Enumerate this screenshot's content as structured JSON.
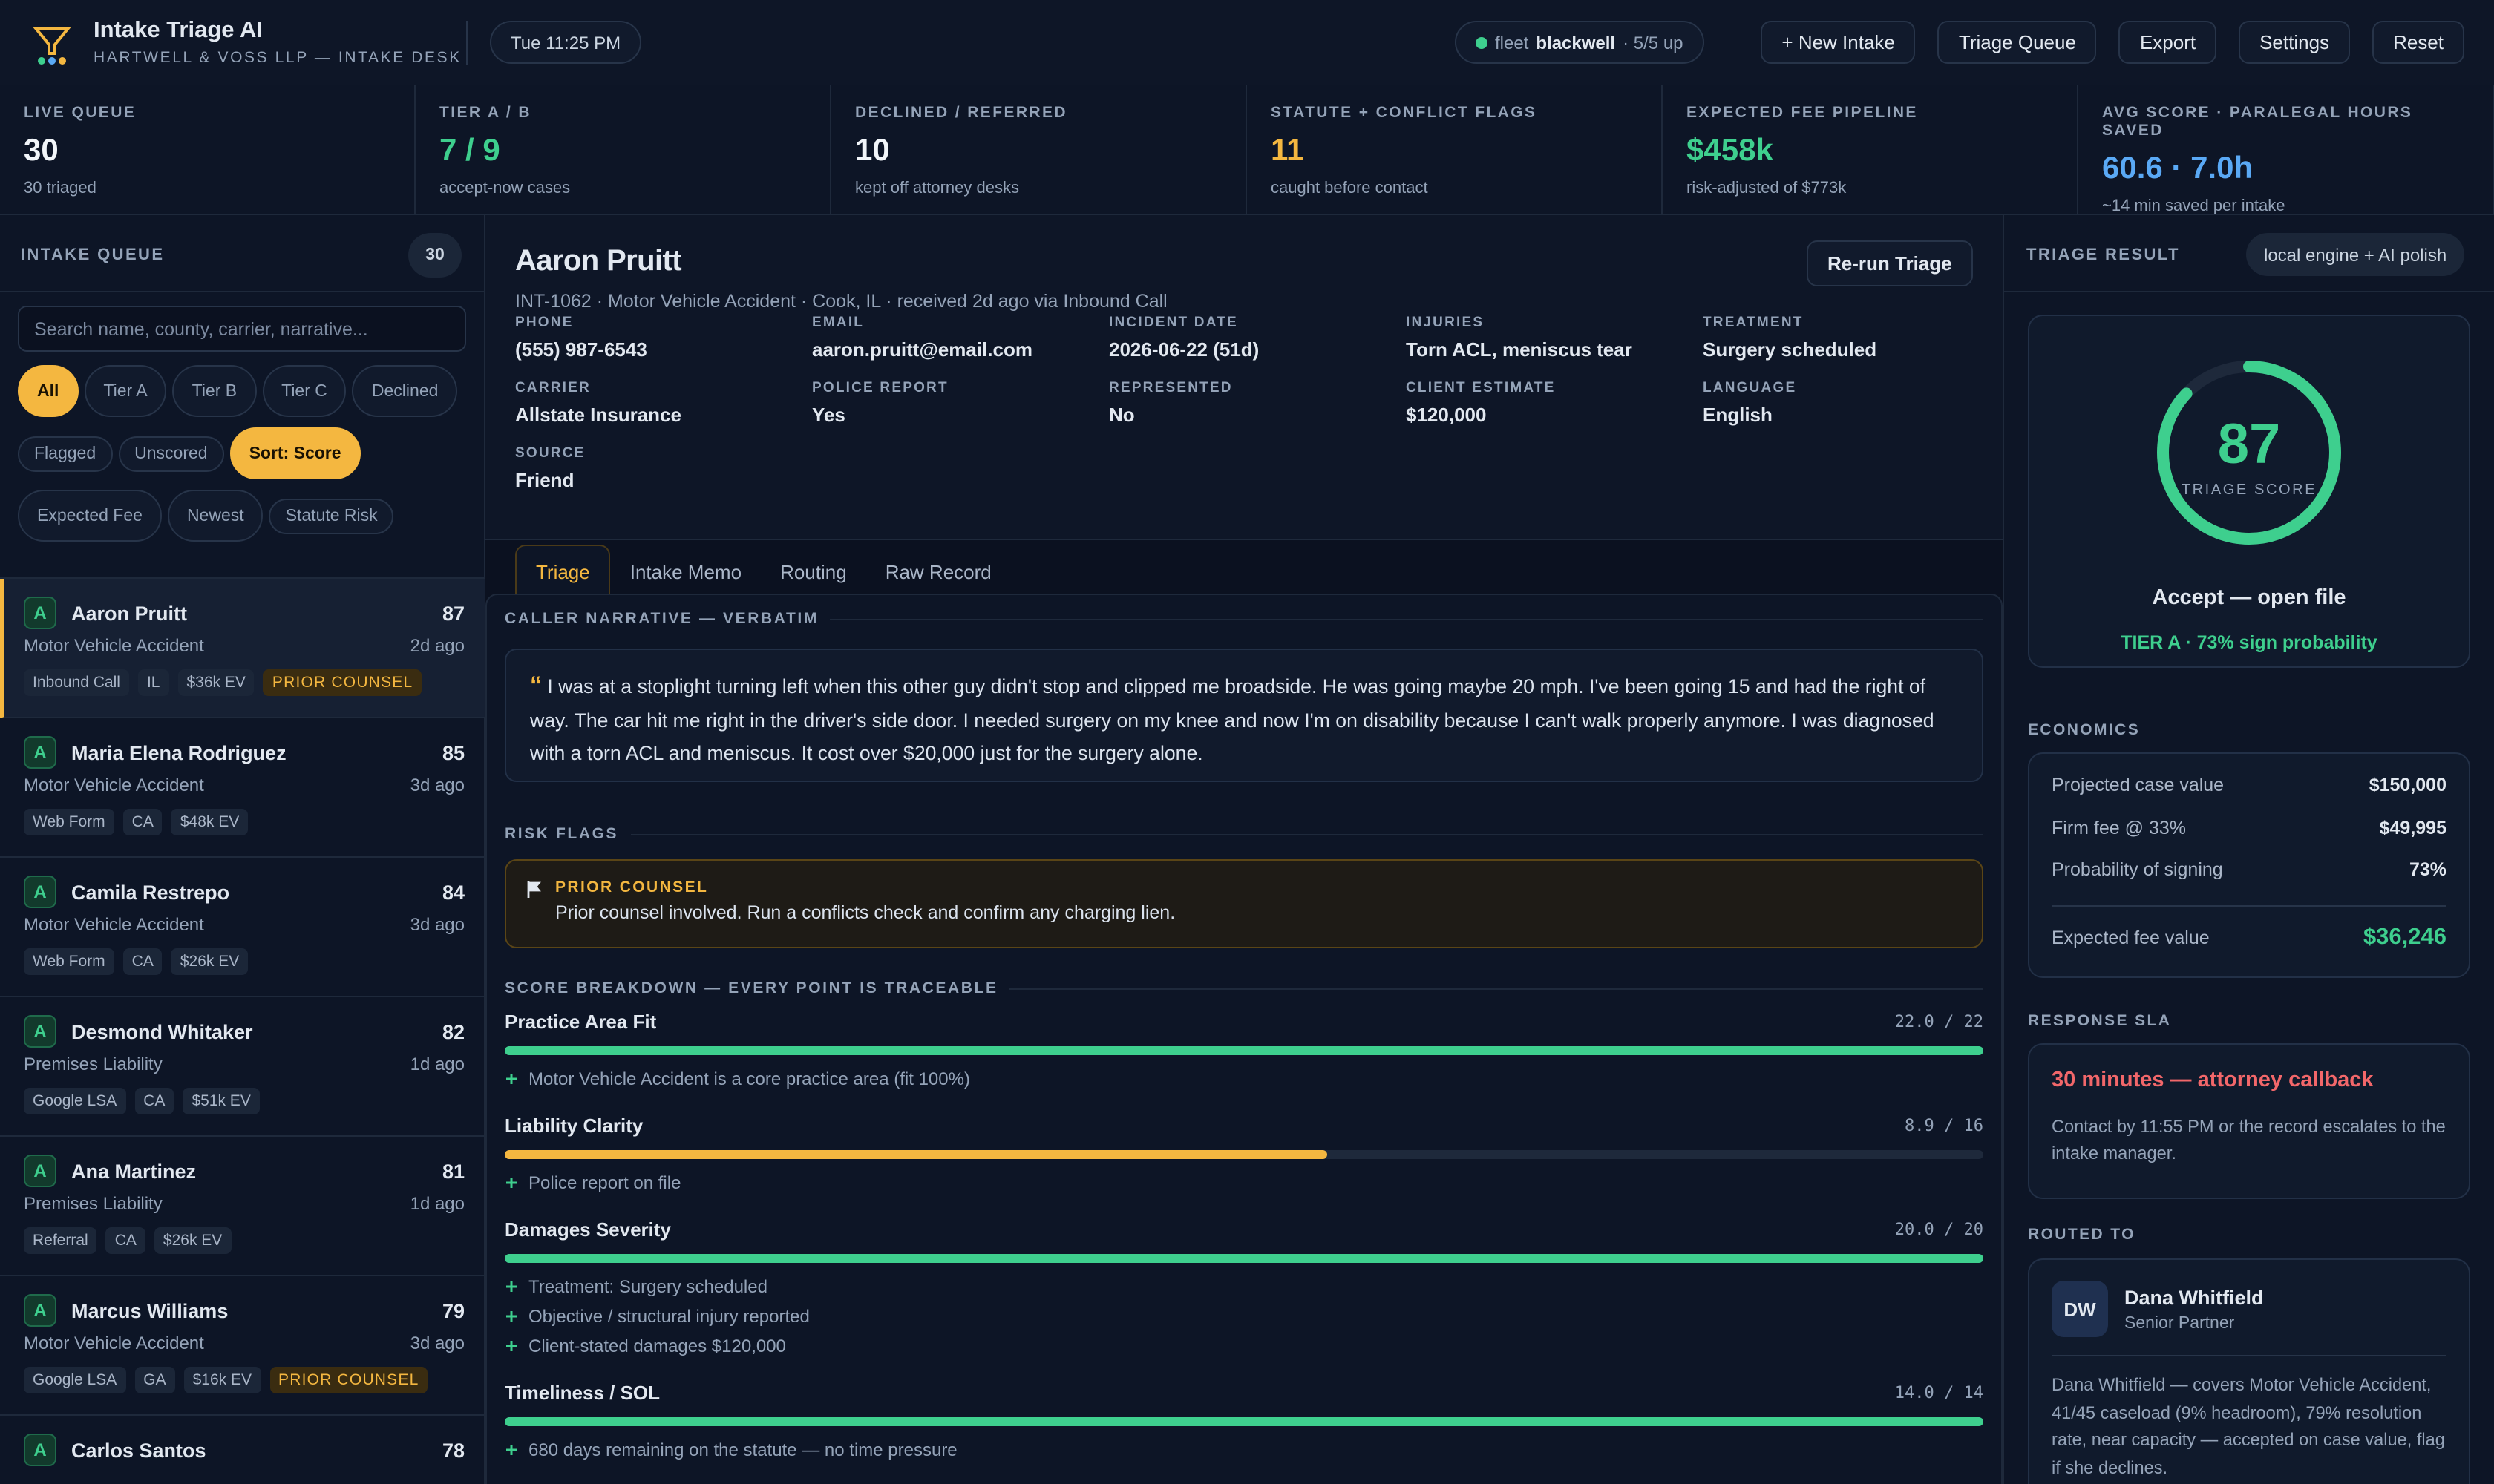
{
  "header": {
    "title": "Intake Triage AI",
    "subtitle": "HARTWELL & VOSS LLP — INTAKE DESK",
    "time": "Tue 11:25 PM",
    "fleet": {
      "label": "fleet",
      "name": "blackwell",
      "status": "· 5/5 up"
    },
    "buttons": [
      "+ New Intake",
      "Triage Queue",
      "Export",
      "Settings",
      "Reset"
    ]
  },
  "kpis": [
    {
      "label": "LIVE QUEUE",
      "value": "30",
      "sub": "30 triaged",
      "color": "#f1f5f9"
    },
    {
      "label": "TIER A / B",
      "value": "7 / 9",
      "sub": "accept-now cases",
      "color": "#3ecf8e"
    },
    {
      "label": "DECLINED / REFERRED",
      "value": "10",
      "sub": "kept off attorney desks",
      "color": "#f1f5f9"
    },
    {
      "label": "STATUTE + CONFLICT FLAGS",
      "value": "11",
      "sub": "caught before contact",
      "color": "#f4b740"
    },
    {
      "label": "EXPECTED FEE PIPELINE",
      "value": "$458k",
      "sub": "risk-adjusted of $773k",
      "color": "#3ecf8e"
    },
    {
      "label": "AVG SCORE · PARALEGAL HOURS SAVED",
      "value": "60.6 · 7.0h",
      "sub": "~14 min saved per intake",
      "color": "#5aa9f5"
    }
  ],
  "queue": {
    "title": "INTAKE QUEUE",
    "count": "30",
    "search_placeholder": "Search name, county, carrier, narrative...",
    "filters": [
      "All",
      "Tier A",
      "Tier B",
      "Tier C",
      "Declined",
      "Flagged",
      "Unscored"
    ],
    "sorts": [
      "Sort: Score",
      "Expected Fee",
      "Newest",
      "Statute Risk"
    ],
    "items": [
      {
        "tier": "A",
        "name": "Aaron Pruitt",
        "score": "87",
        "case": "Motor Vehicle Accident",
        "age": "2d ago",
        "tags": [
          "Inbound Call",
          "IL",
          "$36k EV"
        ],
        "flag": "PRIOR COUNSEL"
      },
      {
        "tier": "A",
        "name": "Maria Elena Rodriguez",
        "score": "85",
        "case": "Motor Vehicle Accident",
        "age": "3d ago",
        "tags": [
          "Web Form",
          "CA",
          "$48k EV"
        ]
      },
      {
        "tier": "A",
        "name": "Camila Restrepo",
        "score": "84",
        "case": "Motor Vehicle Accident",
        "age": "3d ago",
        "tags": [
          "Web Form",
          "CA",
          "$26k EV"
        ]
      },
      {
        "tier": "A",
        "name": "Desmond Whitaker",
        "score": "82",
        "case": "Premises Liability",
        "age": "1d ago",
        "tags": [
          "Google LSA",
          "CA",
          "$51k EV"
        ]
      },
      {
        "tier": "A",
        "name": "Ana Martinez",
        "score": "81",
        "case": "Premises Liability",
        "age": "1d ago",
        "tags": [
          "Referral",
          "CA",
          "$26k EV"
        ]
      },
      {
        "tier": "A",
        "name": "Marcus Williams",
        "score": "79",
        "case": "Motor Vehicle Accident",
        "age": "3d ago",
        "tags": [
          "Google LSA",
          "GA",
          "$16k EV"
        ],
        "flag": "PRIOR COUNSEL"
      },
      {
        "tier": "A",
        "name": "Carlos Santos",
        "score": "78"
      }
    ]
  },
  "detail": {
    "name": "Aaron Pruitt",
    "rerun": "Re-run Triage",
    "meta": "INT-1062 · Motor Vehicle Accident · Cook, IL · received 2d ago via Inbound Call",
    "fields": [
      {
        "label": "PHONE",
        "value": "(555) 987-6543"
      },
      {
        "label": "EMAIL",
        "value": "aaron.pruitt@email.com"
      },
      {
        "label": "INCIDENT DATE",
        "value": "2026-06-22 (51d)"
      },
      {
        "label": "INJURIES",
        "value": "Torn ACL, meniscus tear"
      },
      {
        "label": "TREATMENT",
        "value": "Surgery scheduled"
      },
      {
        "label": "CARRIER",
        "value": "Allstate Insurance"
      },
      {
        "label": "POLICE REPORT",
        "value": "Yes"
      },
      {
        "label": "REPRESENTED",
        "value": "No"
      },
      {
        "label": "CLIENT ESTIMATE",
        "value": "$120,000"
      },
      {
        "label": "LANGUAGE",
        "value": "English"
      },
      {
        "label": "SOURCE",
        "value": "Friend"
      }
    ],
    "tabs": [
      "Triage",
      "Intake Memo",
      "Routing",
      "Raw Record"
    ],
    "narrative_title": "CALLER NARRATIVE — VERBATIM",
    "quote_mark": "“",
    "narrative": "I was at a stoplight turning left when this other guy didn't stop and clipped me broadside. He was going maybe 20 mph. I've been going 15 and had the right of way. The car hit me right in the driver's side door. I needed surgery on my knee and now I'm on disability because I can't walk properly anymore. I was diagnosed with a torn ACL and meniscus. It cost over $20,000 just for the surgery alone.",
    "risk_title": "RISK FLAGS",
    "risk": {
      "title": "PRIOR COUNSEL",
      "text": "Prior counsel involved. Run a conflicts check and confirm any charging lien."
    },
    "breakdown_title": "SCORE BREAKDOWN — EVERY POINT IS TRACEABLE",
    "breakdown": [
      {
        "name": "Practice Area Fit",
        "score": 22,
        "max": 22,
        "label": "22.0 / 22",
        "color": "#3ecf8e",
        "notes": [
          "Motor Vehicle Accident is a core practice area (fit 100%)"
        ]
      },
      {
        "name": "Liability Clarity",
        "score": 8.9,
        "max": 16,
        "label": "8.9 / 16",
        "color": "#f4b740",
        "notes": [
          "Police report on file"
        ]
      },
      {
        "name": "Damages Severity",
        "score": 20,
        "max": 20,
        "label": "20.0 / 20",
        "color": "#3ecf8e",
        "notes": [
          "Treatment: Surgery scheduled",
          "Objective / structural injury reported",
          "Client-stated damages $120,000"
        ]
      },
      {
        "name": "Timeliness / SOL",
        "score": 14,
        "max": 14,
        "label": "14.0 / 14",
        "color": "#3ecf8e",
        "notes": [
          "680 days remaining on the statute — no time pressure"
        ]
      }
    ]
  },
  "result": {
    "title": "TRIAGE RESULT",
    "engine": "local engine + AI polish",
    "score": 87,
    "score_label": "TRIAGE SCORE",
    "decision": "Accept — open file",
    "tier_line": "TIER A · 73% sign probability",
    "economics_title": "ECONOMICS",
    "economics": [
      {
        "label": "Projected case value",
        "value": "$150,000"
      },
      {
        "label": "Firm fee @ 33%",
        "value": "$49,995"
      },
      {
        "label": "Probability of signing",
        "value": "73%"
      }
    ],
    "expected": {
      "label": "Expected fee value",
      "value": "$36,246"
    },
    "sla_title": "RESPONSE SLA",
    "sla": "30 minutes — attorney callback",
    "sla_text": "Contact by 11:55 PM or the record escalates to the intake manager.",
    "routed_title": "ROUTED TO",
    "routed": {
      "initials": "DW",
      "name": "Dana Whitfield",
      "role": "Senior Partner",
      "text": "Dana Whitfield — covers Motor Vehicle Accident, 41/45 caseload (9% headroom), 79% resolution rate, near capacity — accepted on case value, flag if she declines."
    }
  }
}
